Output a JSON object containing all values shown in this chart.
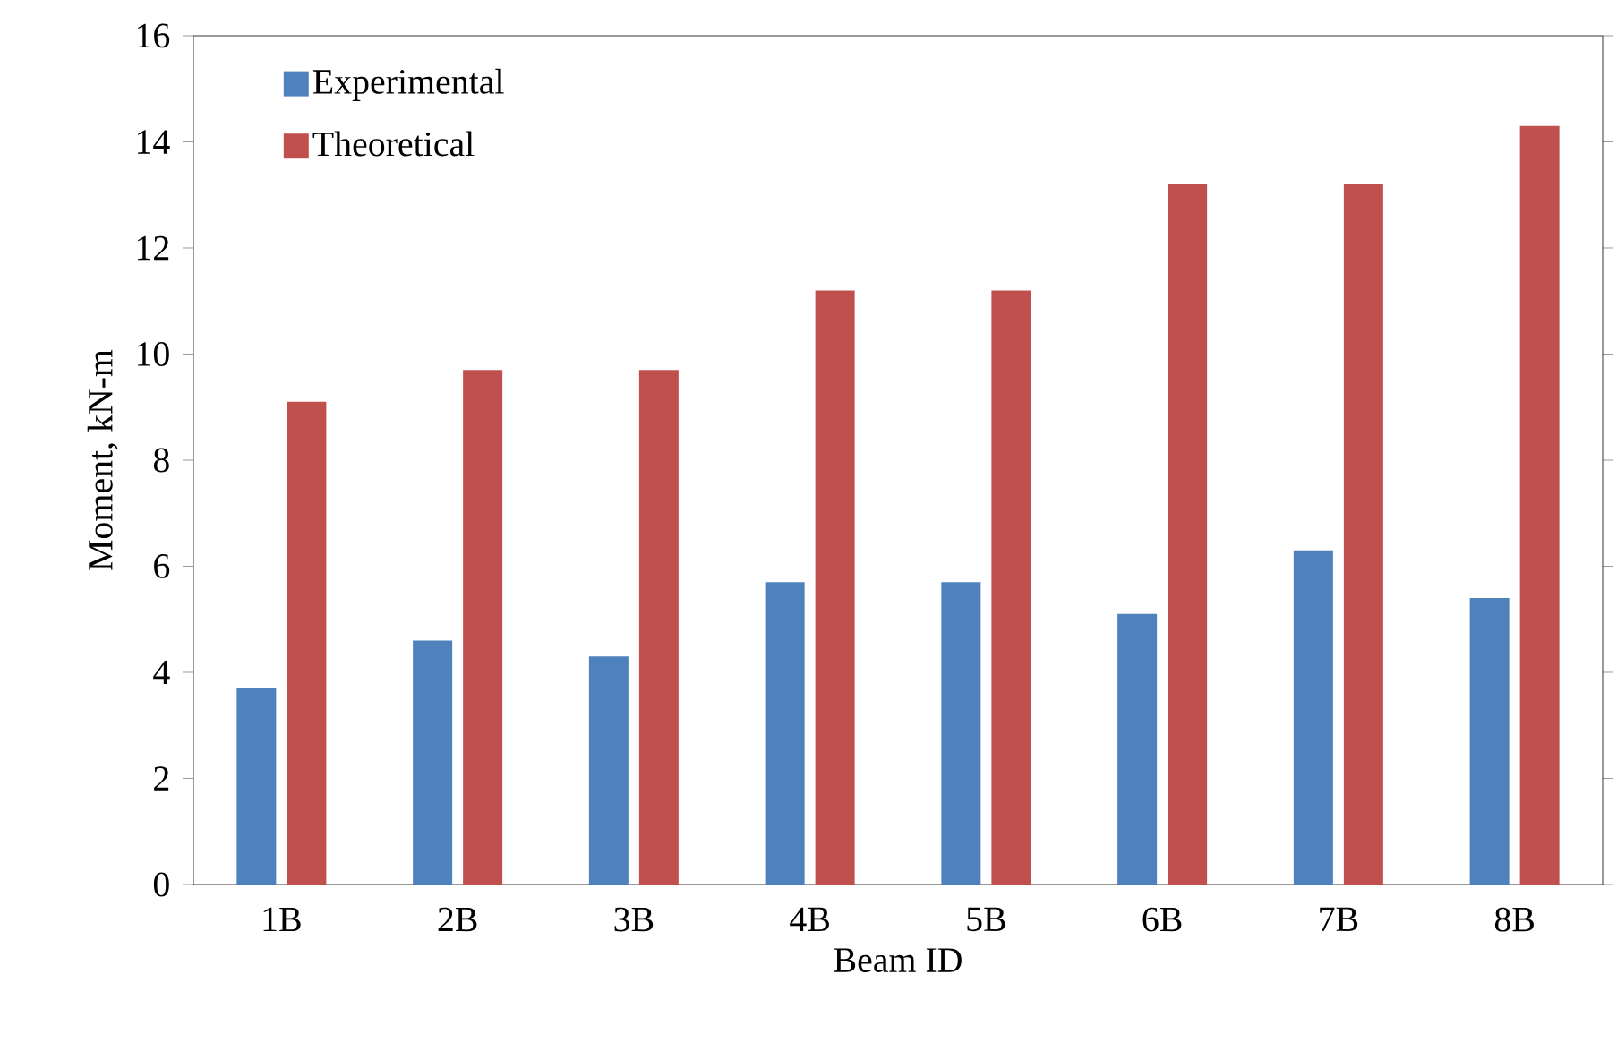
{
  "chart_data": {
    "type": "bar",
    "xlabel": "Beam ID",
    "ylabel": "Moment, kN-m",
    "categories": [
      "1B",
      "2B",
      "3B",
      "4B",
      "5B",
      "6B",
      "7B",
      "8B"
    ],
    "series": [
      {
        "name": "Experimental",
        "color": "#4f81bd",
        "values": [
          3.7,
          4.6,
          4.3,
          5.7,
          5.7,
          5.1,
          6.3,
          5.4
        ]
      },
      {
        "name": "Theoretical",
        "color": "#c0504d",
        "values": [
          9.1,
          9.7,
          9.7,
          11.2,
          11.2,
          13.2,
          13.2,
          14.3
        ]
      }
    ],
    "ylim": [
      0,
      16
    ],
    "yticks": [
      0,
      2,
      4,
      6,
      8,
      10,
      12,
      14,
      16
    ],
    "grid": false,
    "legend": "top left"
  }
}
